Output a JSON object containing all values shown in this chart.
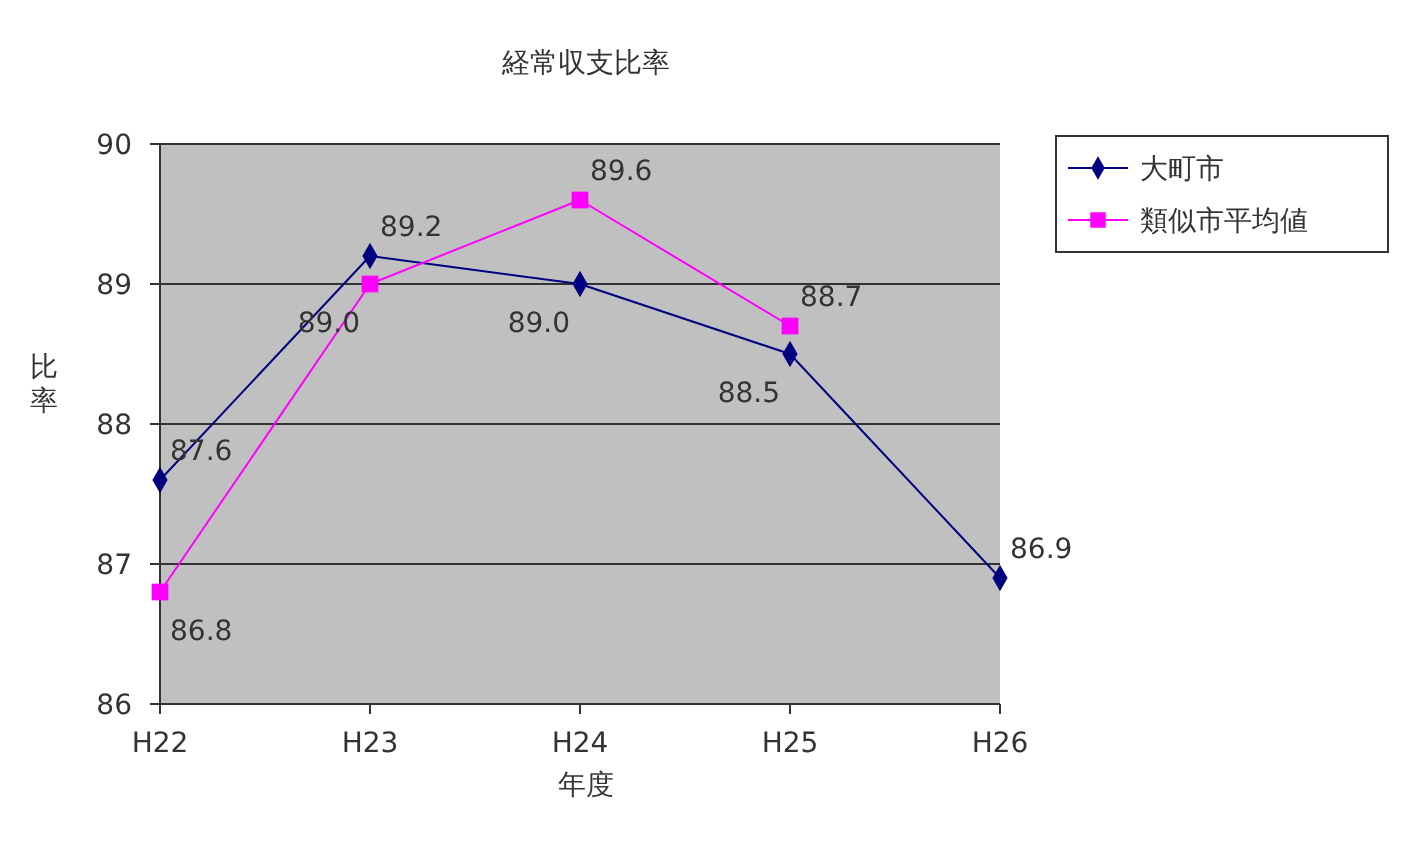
{
  "chart_data": {
    "type": "line",
    "title": "経常収支比率",
    "xlabel": "年度",
    "ylabel": "比率",
    "categories": [
      "H22",
      "H23",
      "H24",
      "H25",
      "H26"
    ],
    "series": [
      {
        "name": "大町市",
        "color": "#000080",
        "marker": "diamond",
        "values": [
          87.6,
          89.2,
          89.0,
          88.5,
          86.9
        ],
        "value_labels": [
          "87.6",
          "89.2",
          "89.0",
          "88.5",
          "86.9"
        ]
      },
      {
        "name": "類似市平均値",
        "color": "#ff00ff",
        "marker": "square",
        "values": [
          86.8,
          89.0,
          89.6,
          88.7,
          null
        ],
        "value_labels": [
          "86.8",
          "89.0",
          "89.6",
          "88.7",
          null
        ]
      }
    ],
    "ylim": [
      86,
      90
    ],
    "yticks": [
      86,
      87,
      88,
      89,
      90
    ],
    "grid": "y",
    "legend": "top right"
  }
}
